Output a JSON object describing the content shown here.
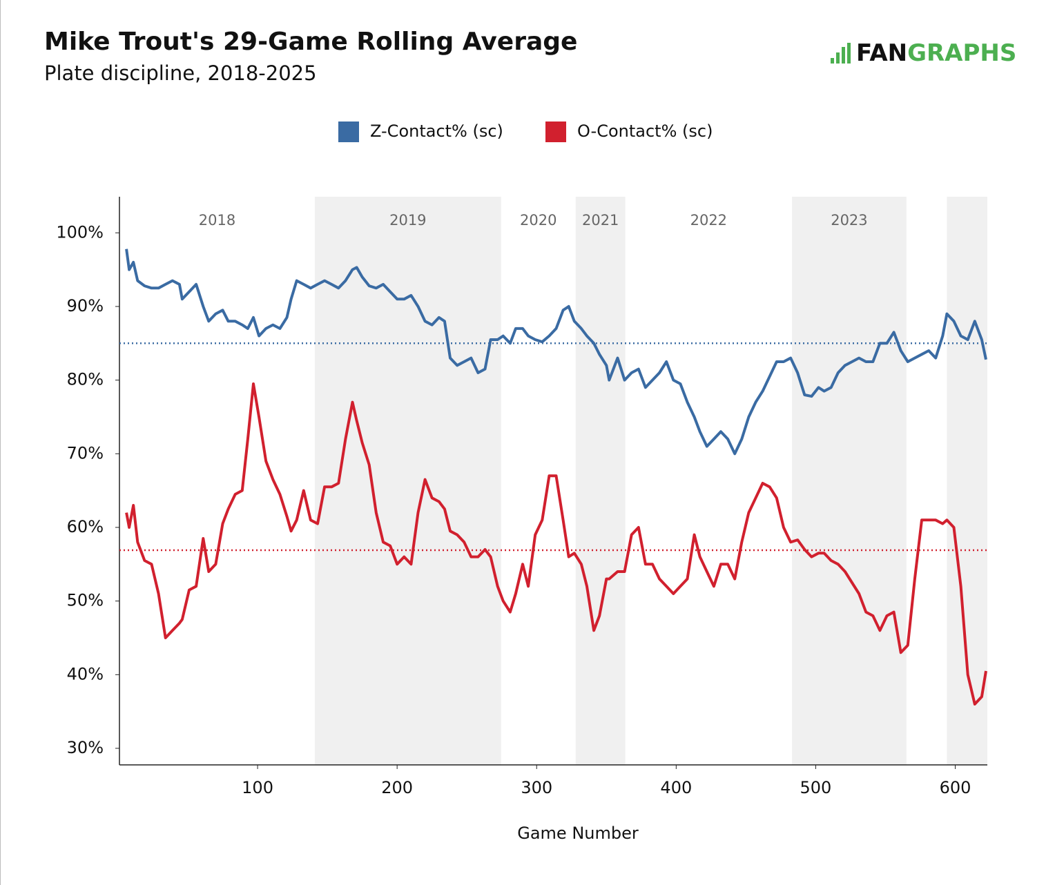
{
  "chart_data": {
    "type": "line",
    "title": "Mike Trout's 29-Game Rolling Average",
    "subtitle": "Plate discipline, 2018-2025",
    "logo": [
      "FAN",
      "GRAPHS"
    ],
    "x_label": "Game Number",
    "xlim": [
      1,
      623
    ],
    "xticks": [
      100,
      200,
      300,
      400,
      500,
      600
    ],
    "ylim": [
      27.75,
      104.9
    ],
    "yticks": [
      {
        "value": 30,
        "label": "30%"
      },
      {
        "value": 40,
        "label": "40%"
      },
      {
        "value": 50,
        "label": "50%"
      },
      {
        "value": 60,
        "label": "60%"
      },
      {
        "value": 70,
        "label": "70%"
      },
      {
        "value": 80,
        "label": "80%"
      },
      {
        "value": 90,
        "label": "90%"
      },
      {
        "value": 100,
        "label": "100%"
      }
    ],
    "seasons": [
      {
        "label": "2018",
        "start": 1,
        "end": 141,
        "shaded": false
      },
      {
        "label": "2019",
        "start": 141,
        "end": 274.5,
        "shaded": true
      },
      {
        "label": "2020",
        "start": 274.5,
        "end": 328,
        "shaded": false
      },
      {
        "label": "2021",
        "start": 328,
        "end": 363.5,
        "shaded": true
      },
      {
        "label": "2022",
        "start": 363.5,
        "end": 483,
        "shaded": false
      },
      {
        "label": "2023",
        "start": 483,
        "end": 565,
        "shaded": true
      },
      {
        "label": null,
        "start": 565,
        "end": 594,
        "shaded": false
      },
      {
        "label": null,
        "start": 594,
        "end": 623,
        "shaded": true
      }
    ],
    "x": [
      6,
      8,
      11,
      14,
      19,
      24,
      29,
      34,
      39,
      44,
      46,
      51,
      56,
      61,
      65,
      70,
      75,
      79,
      84,
      89,
      93,
      97,
      101,
      106,
      111,
      116,
      121,
      124,
      128,
      133,
      138,
      143,
      148,
      153,
      158,
      163,
      168,
      171,
      175,
      180,
      185,
      190,
      195,
      200,
      205,
      210,
      215,
      220,
      225,
      230,
      234,
      238,
      243,
      248,
      253,
      258,
      263,
      267,
      272,
      276,
      281,
      285,
      290,
      294,
      299,
      304,
      309,
      314,
      319,
      323,
      327,
      332,
      336,
      341,
      345,
      350,
      352,
      358,
      363,
      368,
      373,
      378,
      383,
      388,
      393,
      398,
      403,
      408,
      413,
      417,
      422,
      427,
      432,
      437,
      442,
      447,
      452,
      457,
      462,
      467,
      472,
      477,
      482,
      487,
      492,
      497,
      502,
      506,
      511,
      516,
      521,
      526,
      531,
      536,
      541,
      546,
      551,
      556,
      561,
      566,
      571,
      576,
      581,
      586,
      591,
      594,
      599,
      604,
      609,
      614,
      619,
      622
    ],
    "series": [
      {
        "name": "Z-Contact% (sc)",
        "color": "#3a6ba3",
        "average": 85.0,
        "values": [
          97.8,
          95,
          96,
          93.5,
          92.8,
          92.5,
          92.5,
          93,
          93.5,
          93,
          91,
          92,
          93,
          90,
          88,
          89,
          89.5,
          88,
          88,
          87.5,
          87,
          88.5,
          86,
          87,
          87.5,
          87,
          88.5,
          91,
          93.5,
          93,
          92.5,
          93,
          93.5,
          93,
          92.5,
          93.5,
          95,
          95.3,
          94,
          92.8,
          92.5,
          93,
          92,
          91,
          91,
          91.5,
          90,
          88,
          87.5,
          88.5,
          88,
          83,
          82,
          82.5,
          83,
          81,
          81.5,
          85.5,
          85.5,
          86,
          85,
          87,
          87,
          86,
          85.5,
          85.2,
          86,
          87,
          89.5,
          90,
          88,
          87,
          86,
          85,
          83.5,
          82,
          80,
          83,
          80,
          81,
          81.5,
          79,
          80,
          81,
          82.5,
          80,
          79.5,
          77,
          75,
          73,
          71,
          72,
          73,
          72,
          70,
          72,
          75,
          77,
          78.5,
          80.5,
          82.5,
          82.5,
          83,
          81,
          78,
          77.8,
          79,
          78.5,
          79,
          81,
          82,
          82.5,
          83,
          82.5,
          82.5,
          85,
          85,
          86.5,
          84,
          82.5,
          83,
          83.5,
          84,
          83,
          86,
          89,
          88,
          86,
          85.5,
          88,
          85.5,
          82.8
        ]
      },
      {
        "name": "O-Contact% (sc)",
        "color": "#d1202e",
        "average": 56.9,
        "values": [
          62,
          60,
          63,
          58,
          55.5,
          55,
          51,
          45,
          46,
          47,
          47.5,
          51.5,
          52,
          58.5,
          54,
          55,
          60.5,
          62.5,
          64.5,
          65,
          72,
          79.5,
          75,
          69,
          66.5,
          64.5,
          61.5,
          59.5,
          61,
          65,
          61,
          60.5,
          65.5,
          65.5,
          66,
          72,
          77,
          74.5,
          71.5,
          68.5,
          62,
          58,
          57.5,
          55,
          56,
          55,
          62,
          66.5,
          64,
          63.5,
          62.5,
          59.5,
          59,
          58,
          56,
          56,
          57,
          56,
          52,
          50,
          48.5,
          51,
          55,
          52,
          59,
          61,
          67,
          67,
          61,
          56,
          56.5,
          55,
          52,
          46,
          48,
          53,
          53,
          54,
          54,
          59,
          60,
          55,
          55,
          53,
          52,
          51,
          52,
          53,
          59,
          56,
          54,
          52,
          55,
          55,
          53,
          58,
          62,
          64,
          66,
          65.5,
          64,
          60,
          58,
          58.3,
          57,
          56,
          56.5,
          56.5,
          55.5,
          55,
          54,
          52.5,
          51,
          48.5,
          48,
          46,
          48,
          48.5,
          43,
          44,
          53,
          61,
          61,
          61,
          60.5,
          61,
          60,
          52,
          40,
          36,
          37,
          40.5
        ]
      }
    ]
  }
}
